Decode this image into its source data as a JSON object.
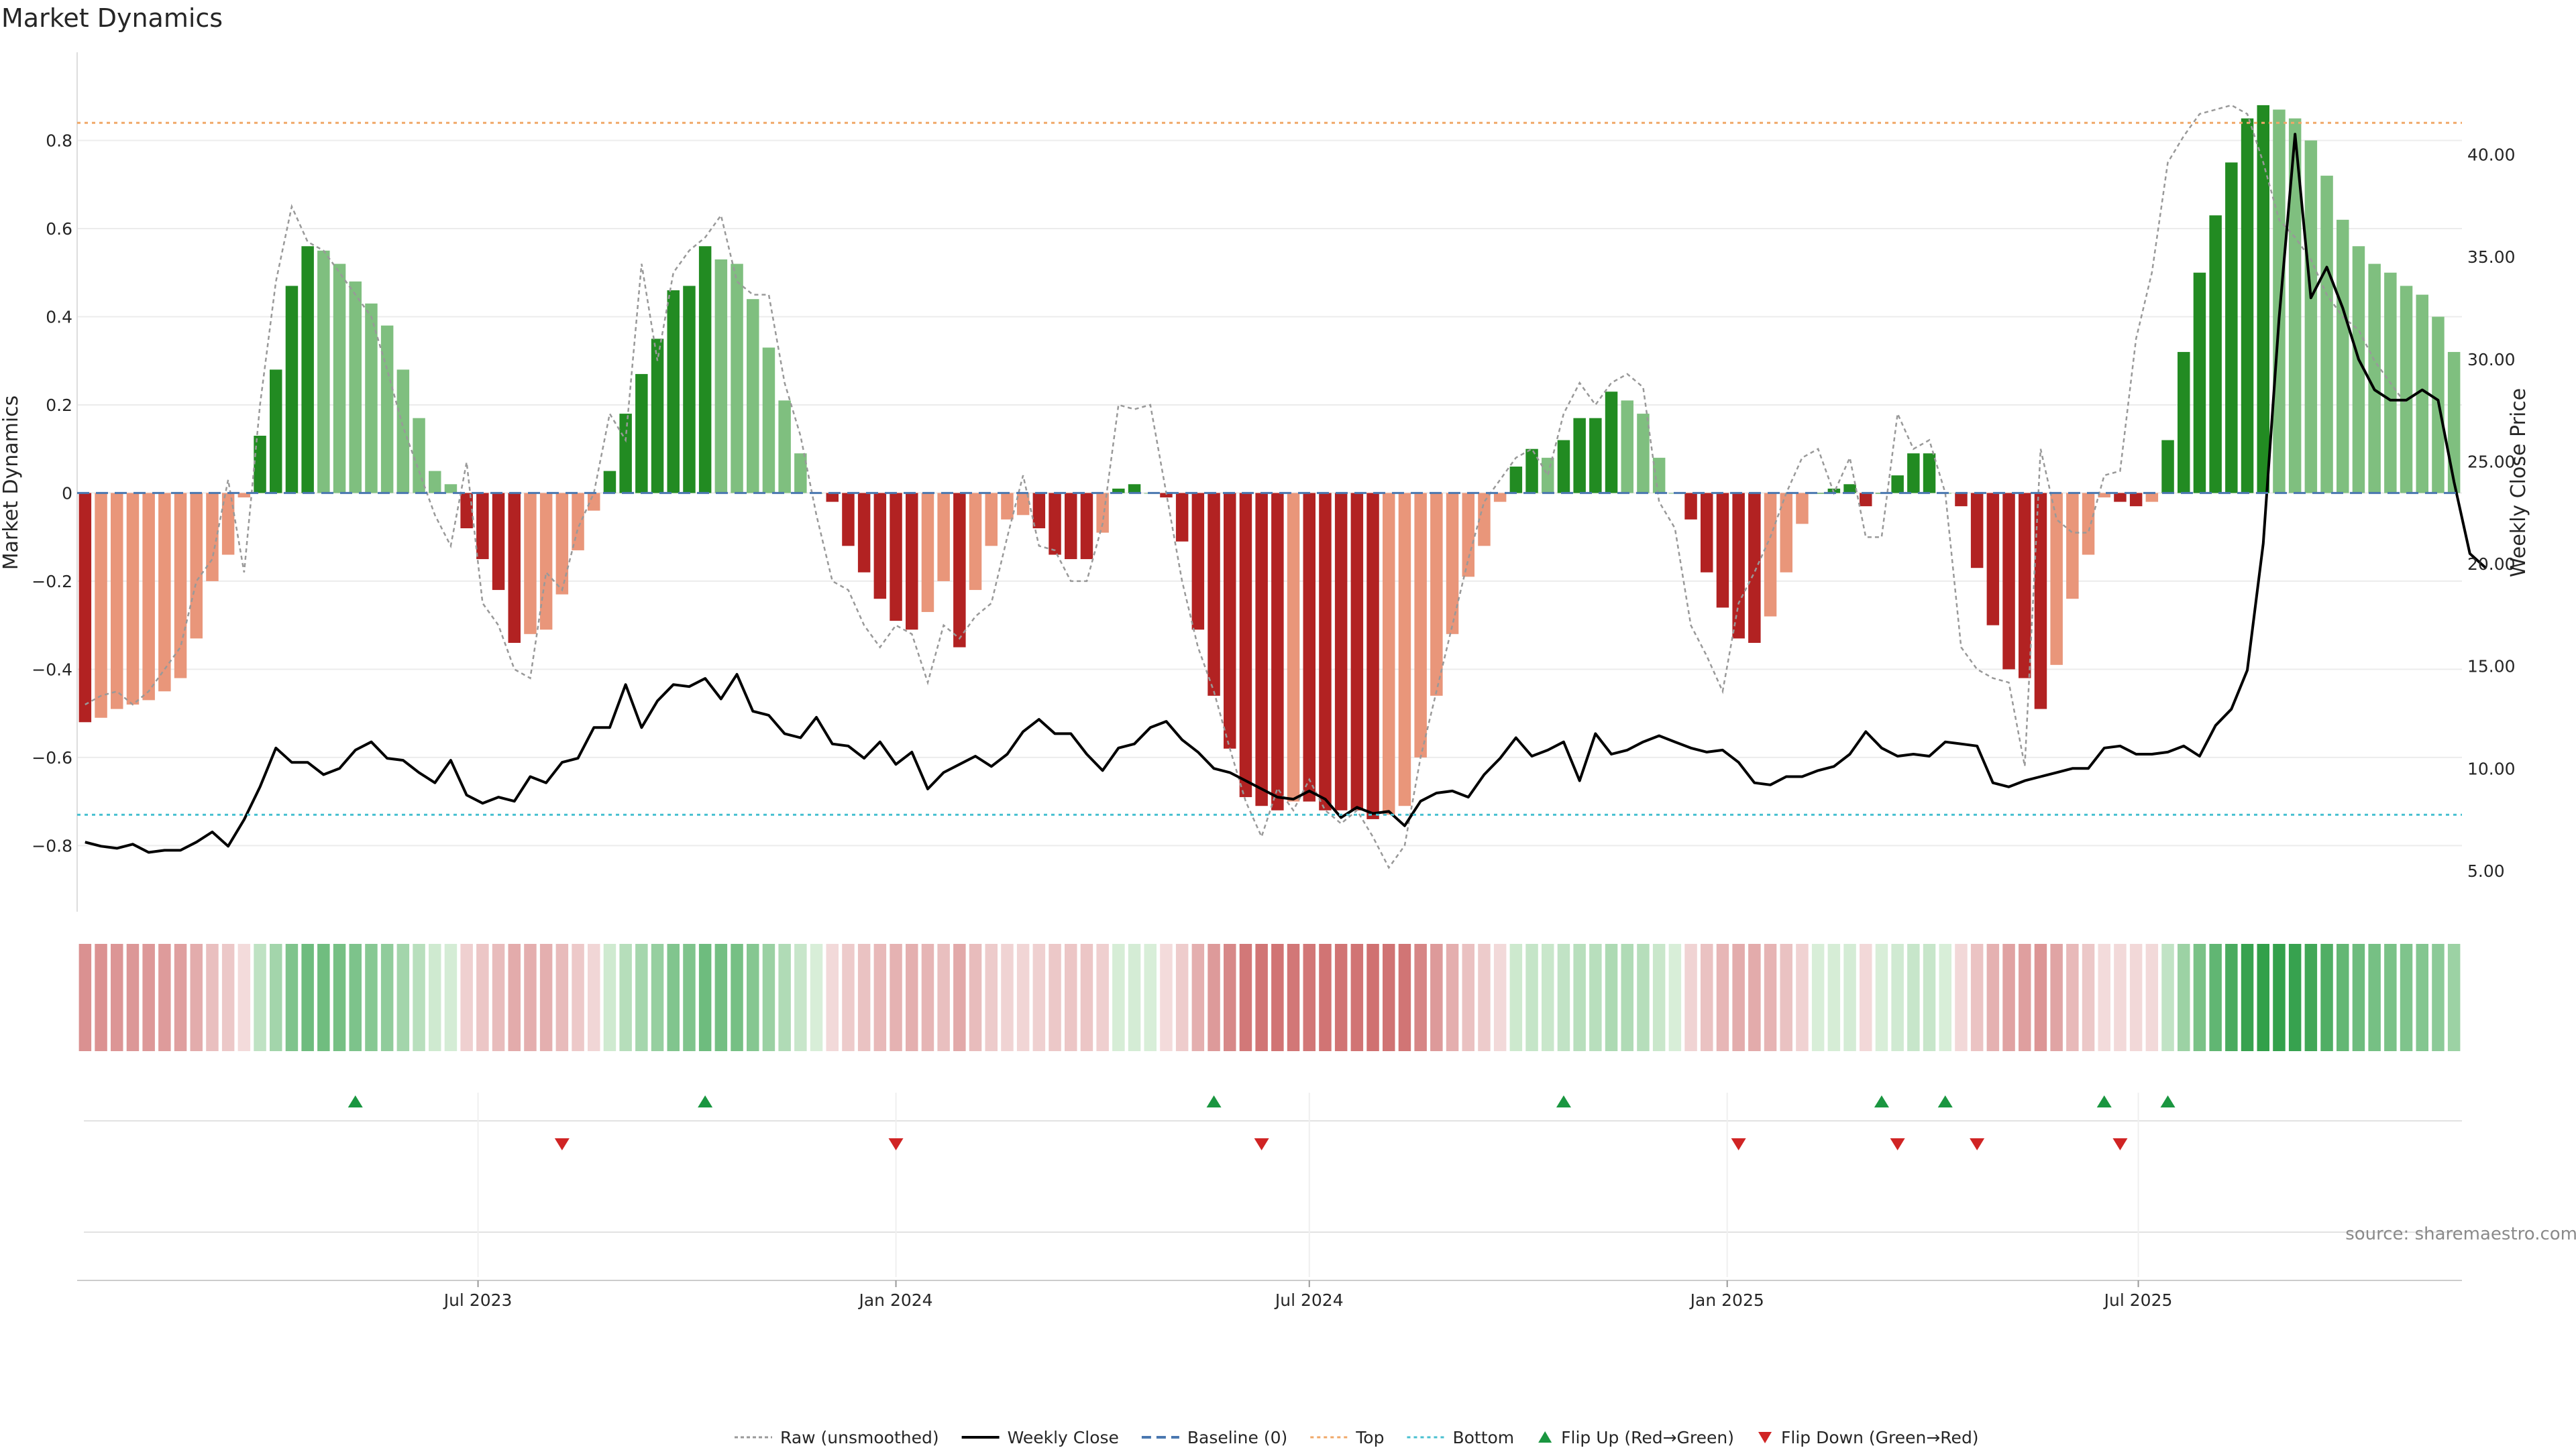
{
  "chart_data": {
    "type": "bar",
    "title": "Market Dynamics",
    "ylabel": "Market Dynamics",
    "y2label": "Weekly Close Price",
    "ylim": [
      -0.95,
      1.0
    ],
    "y2lim": [
      3.0,
      45.0
    ],
    "yticks": [
      -0.8,
      -0.6,
      -0.4,
      -0.2,
      0,
      0.2,
      0.4,
      0.6,
      0.8
    ],
    "ytick_labels": [
      "−0.8",
      "−0.6",
      "−0.4",
      "−0.2",
      "0",
      "0.2",
      "0.4",
      "0.6",
      "0.8"
    ],
    "y2ticks": [
      5,
      10,
      15,
      20,
      25,
      30,
      35,
      40
    ],
    "y2tick_labels": [
      "5.00",
      "10.00",
      "15.00",
      "20.00",
      "25.00",
      "30.00",
      "35.00",
      "40.00"
    ],
    "x_start": "2023-01-09",
    "x_step_days": 7,
    "xticks": [
      {
        "label": "Jul 2023",
        "date": "2023-07-01"
      },
      {
        "label": "Jan 2024",
        "date": "2024-01-01"
      },
      {
        "label": "Jul 2024",
        "date": "2024-07-01"
      },
      {
        "label": "Jan 2025",
        "date": "2025-01-01"
      },
      {
        "label": "Jul 2025",
        "date": "2025-07-01"
      }
    ],
    "top_line": 0.84,
    "bottom_line": -0.73,
    "baseline": 0,
    "series": [
      {
        "name": "Market Dynamics (smoothed)",
        "values": [
          -0.52,
          -0.51,
          -0.49,
          -0.48,
          -0.47,
          -0.45,
          -0.42,
          -0.33,
          -0.2,
          -0.14,
          -0.01,
          0.13,
          0.28,
          0.47,
          0.56,
          0.55,
          0.52,
          0.48,
          0.43,
          0.38,
          0.28,
          0.17,
          0.05,
          0.02,
          -0.08,
          -0.15,
          -0.22,
          -0.34,
          -0.32,
          -0.31,
          -0.23,
          -0.13,
          -0.04,
          0.05,
          0.18,
          0.27,
          0.35,
          0.46,
          0.47,
          0.56,
          0.53,
          0.52,
          0.44,
          0.33,
          0.21,
          0.09,
          0.0,
          -0.02,
          -0.12,
          -0.18,
          -0.24,
          -0.29,
          -0.31,
          -0.27,
          -0.2,
          -0.35,
          -0.22,
          -0.12,
          -0.06,
          -0.05,
          -0.08,
          -0.14,
          -0.15,
          -0.15,
          -0.09,
          0.01,
          0.02,
          0.0,
          -0.01,
          -0.11,
          -0.31,
          -0.46,
          -0.58,
          -0.69,
          -0.71,
          -0.72,
          -0.7,
          -0.7,
          -0.72,
          -0.72,
          -0.72,
          -0.74,
          -0.73,
          -0.71,
          -0.6,
          -0.46,
          -0.32,
          -0.19,
          -0.12,
          -0.02,
          0.06,
          0.1,
          0.08,
          0.12,
          0.17,
          0.17,
          0.23,
          0.21,
          0.18,
          0.08,
          0.0,
          -0.06,
          -0.18,
          -0.26,
          -0.33,
          -0.34,
          -0.28,
          -0.18,
          -0.07,
          0.0,
          0.01,
          0.02,
          -0.03,
          0.0,
          0.04,
          0.09,
          0.09,
          0.0,
          -0.03,
          -0.17,
          -0.3,
          -0.4,
          -0.42,
          -0.49,
          -0.39,
          -0.24,
          -0.14,
          -0.01,
          -0.02,
          -0.03,
          -0.02,
          0.12,
          0.32,
          0.5,
          0.63,
          0.75,
          0.85,
          0.88,
          0.87,
          0.85,
          0.8,
          0.72,
          0.62,
          0.56,
          0.52,
          0.5,
          0.47,
          0.45,
          0.4,
          0.32
        ]
      },
      {
        "name": "Raw (unsmoothed)",
        "values": [
          -0.48,
          -0.46,
          -0.45,
          -0.48,
          -0.45,
          -0.4,
          -0.35,
          -0.2,
          -0.15,
          0.03,
          -0.18,
          0.2,
          0.48,
          0.65,
          0.57,
          0.55,
          0.5,
          0.45,
          0.4,
          0.28,
          0.15,
          0.05,
          -0.05,
          -0.12,
          0.07,
          -0.25,
          -0.3,
          -0.4,
          -0.42,
          -0.18,
          -0.22,
          -0.08,
          0.0,
          0.18,
          0.12,
          0.52,
          0.3,
          0.5,
          0.55,
          0.58,
          0.63,
          0.48,
          0.45,
          0.45,
          0.25,
          0.13,
          -0.05,
          -0.2,
          -0.22,
          -0.3,
          -0.35,
          -0.3,
          -0.32,
          -0.43,
          -0.3,
          -0.33,
          -0.28,
          -0.25,
          -0.1,
          0.04,
          -0.12,
          -0.13,
          -0.2,
          -0.2,
          -0.07,
          0.2,
          0.19,
          0.2,
          0.0,
          -0.2,
          -0.35,
          -0.45,
          -0.58,
          -0.7,
          -0.78,
          -0.67,
          -0.72,
          -0.65,
          -0.72,
          -0.75,
          -0.72,
          -0.78,
          -0.85,
          -0.8,
          -0.6,
          -0.45,
          -0.3,
          -0.15,
          -0.02,
          0.03,
          0.08,
          0.1,
          0.04,
          0.18,
          0.25,
          0.2,
          0.25,
          0.27,
          0.24,
          -0.02,
          -0.08,
          -0.3,
          -0.37,
          -0.45,
          -0.25,
          -0.18,
          -0.1,
          0.0,
          0.08,
          0.1,
          0.0,
          0.08,
          -0.1,
          -0.1,
          0.18,
          0.1,
          0.12,
          0.0,
          -0.35,
          -0.4,
          -0.42,
          -0.43,
          -0.62,
          0.1,
          -0.06,
          -0.09,
          -0.09,
          0.04,
          0.05,
          0.35,
          0.5,
          0.75,
          0.81,
          0.86,
          0.87,
          0.88,
          0.86,
          0.75,
          0.62,
          0.58,
          0.53,
          0.45,
          0.4,
          0.37,
          0.3,
          0.25,
          0.2
        ]
      },
      {
        "name": "Weekly Close",
        "axis": "right",
        "values": [
          6.4,
          6.2,
          6.1,
          6.3,
          5.9,
          6.0,
          6.0,
          6.4,
          6.9,
          6.2,
          7.5,
          9.1,
          11.0,
          10.3,
          10.3,
          9.7,
          10.0,
          10.9,
          11.3,
          10.5,
          10.4,
          9.8,
          9.3,
          10.4,
          8.7,
          8.3,
          8.6,
          8.4,
          9.6,
          9.3,
          10.3,
          10.5,
          12.0,
          12.0,
          14.1,
          12.0,
          13.3,
          14.1,
          14.0,
          14.4,
          13.4,
          14.6,
          12.8,
          12.6,
          11.7,
          11.5,
          12.5,
          11.2,
          11.1,
          10.5,
          11.3,
          10.2,
          10.8,
          9.0,
          9.8,
          10.2,
          10.6,
          10.1,
          10.7,
          11.8,
          12.4,
          11.7,
          11.7,
          10.7,
          9.9,
          11.0,
          11.2,
          12.0,
          12.3,
          11.4,
          10.8,
          10.0,
          9.8,
          9.4,
          9.0,
          8.6,
          8.5,
          8.9,
          8.5,
          7.6,
          8.1,
          7.8,
          7.9,
          7.2,
          8.4,
          8.8,
          8.9,
          8.6,
          9.7,
          10.5,
          11.5,
          10.6,
          10.9,
          11.3,
          9.4,
          11.7,
          10.7,
          10.9,
          11.3,
          11.6,
          11.3,
          11.0,
          10.8,
          10.9,
          10.3,
          9.3,
          9.2,
          9.6,
          9.6,
          9.9,
          10.1,
          10.7,
          11.8,
          11.0,
          10.6,
          10.7,
          10.6,
          11.3,
          11.2,
          11.1,
          9.3,
          9.1,
          9.4,
          9.6,
          9.8,
          10.0,
          10.0,
          11.0,
          11.1,
          10.7,
          10.7,
          10.8,
          11.1,
          10.6,
          12.1,
          12.9,
          14.8,
          21.0,
          32.0,
          41.0,
          33.0,
          34.5,
          32.5,
          30.0,
          28.5,
          28.0,
          28.0,
          28.5,
          28.0,
          24.0,
          20.5,
          19.8
        ]
      }
    ],
    "flip_up": [
      "2023-05-08",
      "2023-10-09",
      "2024-05-20",
      "2024-10-21",
      "2025-03-10",
      "2025-04-07",
      "2025-06-16",
      "2025-07-14"
    ],
    "flip_down": [
      "2023-08-07",
      "2024-01-01",
      "2024-06-10",
      "2025-01-06",
      "2025-03-17",
      "2025-04-21",
      "2025-06-23"
    ]
  },
  "legend": [
    {
      "label": "Raw (unsmoothed)",
      "style": "dotted-gray"
    },
    {
      "label": "Weekly Close",
      "style": "solid-black"
    },
    {
      "label": "Baseline (0)",
      "style": "dashed-blue"
    },
    {
      "label": "Top",
      "style": "dotted-orange"
    },
    {
      "label": "Bottom",
      "style": "dotted-cyan"
    },
    {
      "label": "Flip Up (Red→Green)",
      "style": "triangle-up-green"
    },
    {
      "label": "Flip Down (Green→Red)",
      "style": "triangle-down-red"
    }
  ],
  "source": "source: sharemaestro.com",
  "colors": {
    "strong_green": "#228b22",
    "light_green": "#7fbf7f",
    "strong_red": "#b22222",
    "light_red": "#e9967a",
    "raw_line": "#999999",
    "close_line": "#000000",
    "baseline": "#4a78b0",
    "top": "#f0a868",
    "bottom": "#48c0d0",
    "flip_up": "#1a9640",
    "flip_down": "#d02424"
  }
}
